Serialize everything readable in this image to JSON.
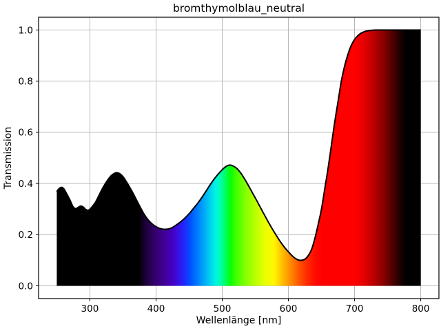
{
  "chart_data": {
    "type": "area",
    "title": "bromthymolblau_neutral",
    "xlabel": "Wellenlänge [nm]",
    "ylabel": "Transmission",
    "xlim": [
      222.5,
      827.5
    ],
    "ylim": [
      -0.05,
      1.05
    ],
    "x_ticks": [
      300,
      400,
      500,
      600,
      700,
      800
    ],
    "x_tick_labels": [
      "300",
      "400",
      "500",
      "600",
      "700",
      "800"
    ],
    "y_ticks": [
      0.0,
      0.2,
      0.4,
      0.6,
      0.8,
      1.0
    ],
    "y_tick_labels": [
      "0.0",
      "0.2",
      "0.4",
      "0.6",
      "0.8",
      "1.0"
    ],
    "grid": true,
    "grid_color": "#b0b0b0",
    "line_color": "#000000",
    "frame_color": "#000000",
    "background_color": "#ffffff",
    "series": [
      {
        "name": "transmission",
        "x": [
          250,
          252,
          255,
          258,
          261,
          265,
          270,
          274,
          278,
          282,
          286,
          290,
          294,
          298,
          302,
          308,
          314,
          320,
          326,
          332,
          338,
          342,
          347,
          352,
          358,
          364,
          370,
          376,
          382,
          388,
          394,
          400,
          406,
          412,
          418,
          424,
          430,
          437,
          444,
          451,
          458,
          465,
          472,
          479,
          486,
          493,
          500,
          506,
          511,
          516,
          522,
          528,
          534,
          540,
          546,
          552,
          558,
          564,
          570,
          576,
          582,
          588,
          594,
          600,
          605,
          610,
          615,
          620,
          625,
          630,
          635,
          640,
          645,
          650,
          655,
          660,
          665,
          670,
          675,
          680,
          685,
          690,
          695,
          700,
          705,
          710,
          715,
          720,
          726,
          732,
          740,
          750,
          760,
          780,
          800
        ],
        "y": [
          0.368,
          0.376,
          0.383,
          0.385,
          0.378,
          0.36,
          0.335,
          0.312,
          0.302,
          0.306,
          0.312,
          0.308,
          0.298,
          0.296,
          0.305,
          0.325,
          0.355,
          0.385,
          0.41,
          0.43,
          0.441,
          0.442,
          0.435,
          0.42,
          0.395,
          0.368,
          0.338,
          0.308,
          0.28,
          0.258,
          0.242,
          0.231,
          0.224,
          0.221,
          0.222,
          0.227,
          0.237,
          0.25,
          0.266,
          0.285,
          0.307,
          0.33,
          0.356,
          0.384,
          0.411,
          0.434,
          0.454,
          0.467,
          0.472,
          0.469,
          0.459,
          0.441,
          0.417,
          0.39,
          0.362,
          0.334,
          0.305,
          0.276,
          0.248,
          0.221,
          0.196,
          0.172,
          0.151,
          0.133,
          0.119,
          0.108,
          0.101,
          0.1,
          0.104,
          0.118,
          0.142,
          0.185,
          0.24,
          0.3,
          0.38,
          0.46,
          0.55,
          0.64,
          0.72,
          0.8,
          0.86,
          0.905,
          0.94,
          0.963,
          0.978,
          0.988,
          0.994,
          0.997,
          0.999,
          1.0,
          1.0,
          1.0,
          1.0,
          1.0,
          1.0
        ]
      }
    ],
    "fill_style": "visible-light-spectrum-gradient",
    "spectrum_gradient": [
      [
        250,
        "#000000"
      ],
      [
        374,
        "#000000"
      ],
      [
        385,
        "#1e003c"
      ],
      [
        395,
        "#2f005f"
      ],
      [
        405,
        "#3b0080"
      ],
      [
        415,
        "#43009e"
      ],
      [
        425,
        "#4301c1"
      ],
      [
        435,
        "#3513e8"
      ],
      [
        443,
        "#1e29ff"
      ],
      [
        452,
        "#0051ff"
      ],
      [
        462,
        "#007bff"
      ],
      [
        472,
        "#00a5f7"
      ],
      [
        481,
        "#00cdee"
      ],
      [
        490,
        "#00f3e5"
      ],
      [
        497,
        "#00ffb0"
      ],
      [
        505,
        "#00ff60"
      ],
      [
        513,
        "#0bff00"
      ],
      [
        522,
        "#45ff00"
      ],
      [
        535,
        "#83ff00"
      ],
      [
        550,
        "#baff00"
      ],
      [
        565,
        "#e9ff00"
      ],
      [
        578,
        "#fff600"
      ],
      [
        590,
        "#ffc300"
      ],
      [
        602,
        "#ff9000"
      ],
      [
        615,
        "#ff5900"
      ],
      [
        628,
        "#ff2a00"
      ],
      [
        642,
        "#ff0800"
      ],
      [
        652,
        "#ff0000"
      ],
      [
        700,
        "#ff0000"
      ],
      [
        715,
        "#e30000"
      ],
      [
        730,
        "#b70000"
      ],
      [
        745,
        "#830000"
      ],
      [
        758,
        "#4d0000"
      ],
      [
        768,
        "#210000"
      ],
      [
        778,
        "#000000"
      ],
      [
        800,
        "#000000"
      ]
    ]
  }
}
